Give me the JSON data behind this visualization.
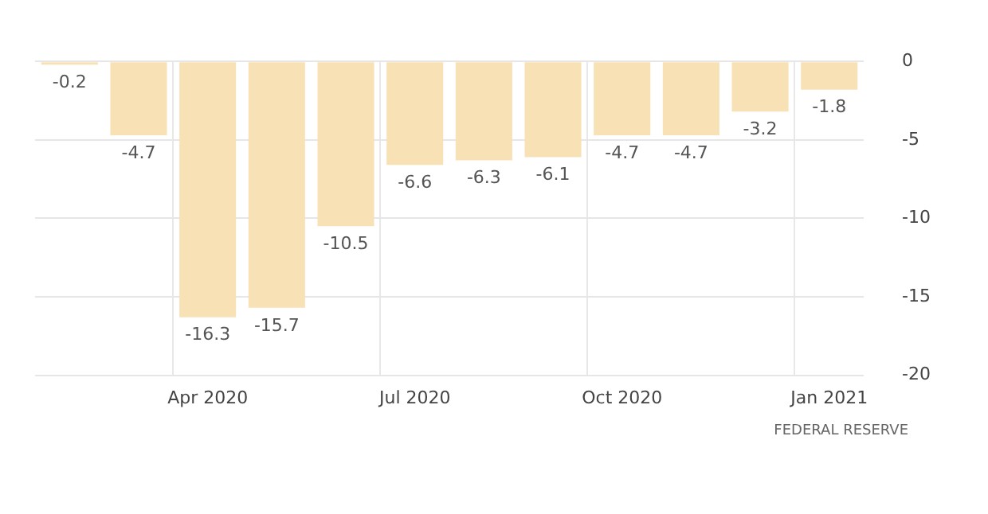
{
  "chart_data": {
    "type": "bar",
    "categories": [
      null,
      null,
      "Apr 2020",
      null,
      null,
      "Jul 2020",
      null,
      null,
      "Oct 2020",
      null,
      null,
      "Jan 2021"
    ],
    "values": [
      -0.2,
      -4.7,
      -16.3,
      -15.7,
      -10.5,
      -6.6,
      -6.3,
      -6.1,
      -4.7,
      -4.7,
      -3.2,
      -1.8
    ],
    "color": "#f8e1b5",
    "ylim": [
      -20,
      0
    ],
    "yticks": [
      0,
      -5,
      -10,
      -15,
      -20
    ],
    "grid": true,
    "data_labels": true,
    "annotations": [
      "FEDERAL RESERVE"
    ]
  }
}
